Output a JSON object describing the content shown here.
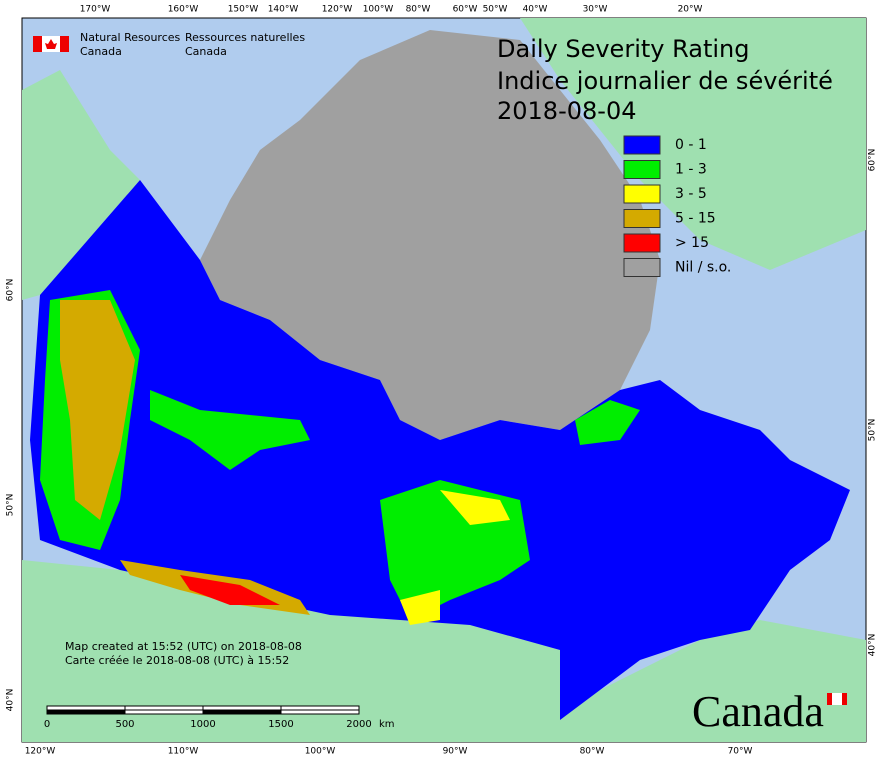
{
  "agency": {
    "english": [
      "Natural Resources",
      "Canada"
    ],
    "french": [
      "Ressources naturelles",
      "Canada"
    ]
  },
  "title": {
    "english": "Daily Severity Rating",
    "french": "Indice journalier de sévérité",
    "date": "2018-08-04"
  },
  "legend": [
    {
      "label": "0 - 1",
      "color": "#0000ff"
    },
    {
      "label": "1 - 3",
      "color": "#00ee00"
    },
    {
      "label": "3 - 5",
      "color": "#ffff00"
    },
    {
      "label": "5 - 15",
      "color": "#d4aa00"
    },
    {
      "label": "> 15",
      "color": "#ff0000"
    },
    {
      "label": "Nil / s.o.",
      "color": "#a0a0a0"
    }
  ],
  "graticule": {
    "top": [
      "170°W",
      "160°W",
      "150°W",
      "140°W",
      "120°W",
      "100°W",
      "80°W",
      "60°W",
      "50°W",
      "40°W",
      "30°W",
      "20°W"
    ],
    "bottom": [
      "120°W",
      "110°W",
      "100°W",
      "90°W",
      "80°W",
      "70°W"
    ],
    "left": [
      "60°N",
      "50°N",
      "40°N"
    ],
    "right": [
      "60°N",
      "50°N",
      "40°N"
    ]
  },
  "notes": [
    "Map created at 15:52 (UTC) on 2018-08-08",
    "Carte créée le 2018-08-08 (UTC) à 15:52"
  ],
  "scale": {
    "labels": [
      "0",
      "500",
      "1000",
      "1500",
      "2000"
    ],
    "unit": "km"
  },
  "wordmark": "Canada"
}
